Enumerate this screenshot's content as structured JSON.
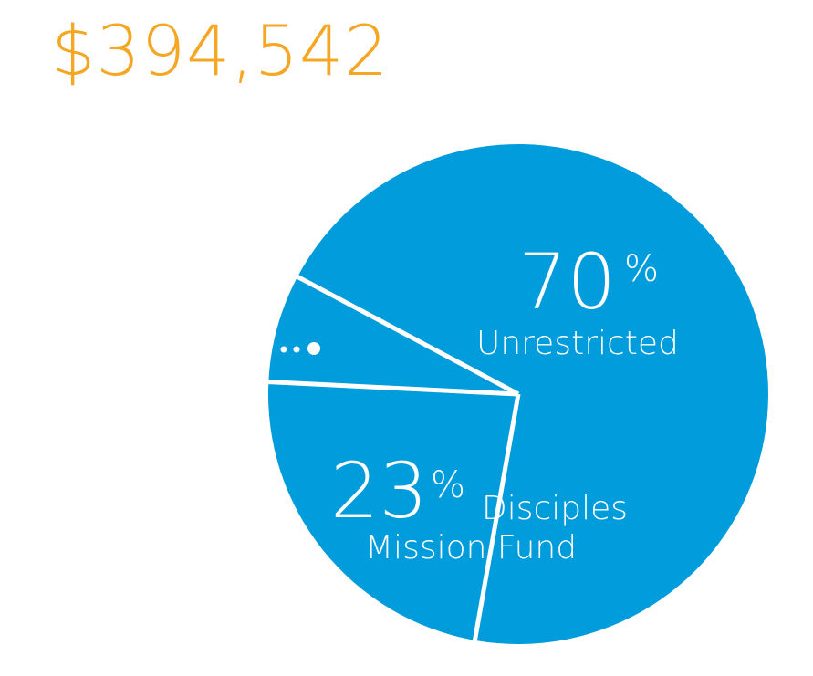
{
  "total": "$394,542",
  "colors": {
    "slice": "#009CDB",
    "divider": "#ffffff",
    "total_text": "#F5A623"
  },
  "chart_data": {
    "type": "pie",
    "title": "$394,542",
    "slices": [
      {
        "label": "Unrestricted",
        "value": 70,
        "pct_text": "70",
        "pct_sign": "%"
      },
      {
        "label": "Disciples Mission Fund",
        "label_lines": [
          "Disciples",
          "Mission Fund"
        ],
        "value": 23,
        "pct_text": "23",
        "pct_sign": "%"
      },
      {
        "label": "…",
        "value": 7,
        "pct_text": ""
      }
    ]
  }
}
